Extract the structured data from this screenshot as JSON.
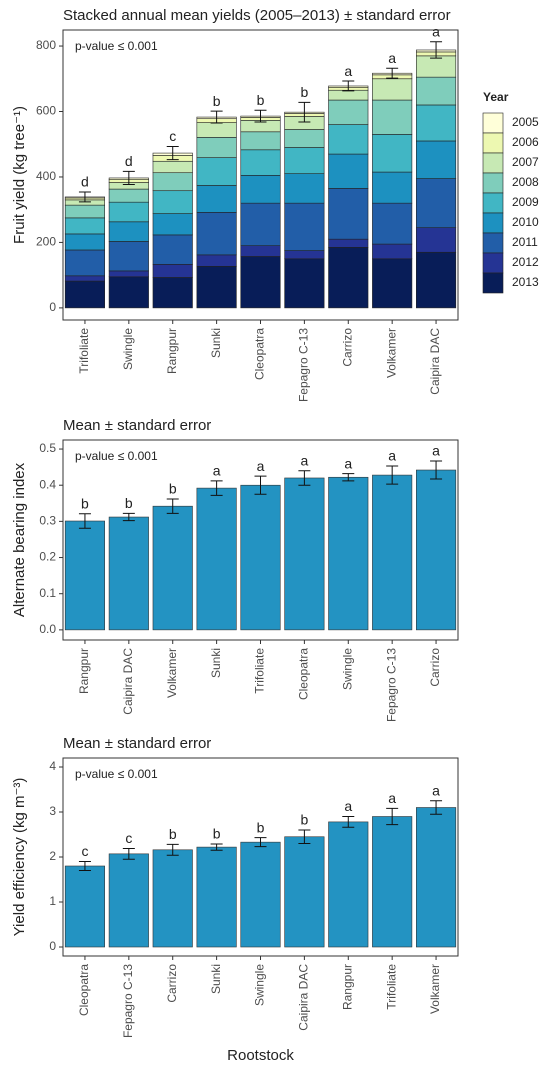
{
  "chart_data": [
    {
      "type": "stacked_bar",
      "title": "Stacked annual mean yields (2005–2013) ± standard error",
      "annotation": "p-value ≤ 0.001",
      "ylabel": "Fruit yield (kg tree⁻¹)",
      "legend_title": "Year",
      "categories": [
        "Trifoliate",
        "Swingle",
        "Rangpur",
        "Sunki",
        "Cleopatra",
        "Fepagro C-13",
        "Carrizo",
        "Volkamer",
        "Caipira DAC"
      ],
      "series": [
        {
          "name": "2005",
          "color": "#ffffd9",
          "values": [
            3,
            4,
            7,
            5,
            4,
            4,
            4,
            5,
            6
          ]
        },
        {
          "name": "2006",
          "color": "#edf8b1",
          "values": [
            6,
            10,
            18,
            12,
            9,
            9,
            9,
            12,
            12
          ]
        },
        {
          "name": "2007",
          "color": "#c7e9b4",
          "values": [
            16,
            20,
            35,
            45,
            35,
            40,
            30,
            65,
            65
          ]
        },
        {
          "name": "2008",
          "color": "#7fcdbb",
          "values": [
            39,
            40,
            55,
            62,
            55,
            55,
            75,
            105,
            85
          ]
        },
        {
          "name": "2009",
          "color": "#41b6c4",
          "values": [
            49,
            60,
            70,
            85,
            78,
            80,
            90,
            115,
            110
          ]
        },
        {
          "name": "2010",
          "color": "#1d91c0",
          "values": [
            49,
            60,
            65,
            82,
            85,
            90,
            105,
            95,
            115
          ]
        },
        {
          "name": "2011",
          "color": "#225ea8",
          "values": [
            79,
            90,
            90,
            130,
            130,
            145,
            155,
            125,
            150
          ]
        },
        {
          "name": "2012",
          "color": "#253494",
          "values": [
            16,
            18,
            40,
            35,
            33,
            25,
            25,
            45,
            75
          ]
        },
        {
          "name": "2013",
          "color": "#081d58",
          "values": [
            82,
            95,
            93,
            127,
            157,
            150,
            185,
            150,
            170
          ]
        }
      ],
      "errors": [
        15,
        20,
        20,
        18,
        18,
        30,
        15,
        15,
        25
      ],
      "letters": [
        "d",
        "d",
        "c",
        "b",
        "b",
        "b",
        "a",
        "a",
        "a"
      ],
      "ylim": [
        -37,
        849
      ],
      "yticks": [
        0,
        200,
        400,
        600,
        800
      ]
    },
    {
      "type": "bar",
      "title": "Mean ± standard error",
      "annotation": "p-value ≤ 0.001",
      "ylabel": "Alternate bearing index",
      "categories": [
        "Rangpur",
        "Caipira DAC",
        "Volkamer",
        "Sunki",
        "Trifoliate",
        "Cleopatra",
        "Swingle",
        "Fepagro C-13",
        "Carrizo"
      ],
      "values": [
        0.301,
        0.312,
        0.342,
        0.392,
        0.4,
        0.42,
        0.422,
        0.428,
        0.442
      ],
      "color": "#2393c2",
      "errors": [
        0.02,
        0.01,
        0.02,
        0.02,
        0.025,
        0.02,
        0.01,
        0.025,
        0.025
      ],
      "letters": [
        "b",
        "b",
        "b",
        "a",
        "a",
        "a",
        "a",
        "a",
        "a"
      ],
      "ylim": [
        -0.028,
        0.525
      ],
      "yticks": [
        {
          "value": 0,
          "label": "0.0"
        },
        0.1,
        0.2,
        0.3,
        0.4,
        0.5
      ]
    },
    {
      "type": "bar",
      "title": "Mean ± standard error",
      "annotation": "p-value ≤ 0.001",
      "ylabel": "Yield efficiency (kg m⁻³)",
      "xlabel": "Rootstock",
      "categories": [
        "Cleopatra",
        "Fepagro C-13",
        "Carrizo",
        "Sunki",
        "Swingle",
        "Caipira DAC",
        "Rangpur",
        "Trifoliate",
        "Volkamer"
      ],
      "values": [
        1.8,
        2.07,
        2.16,
        2.22,
        2.33,
        2.45,
        2.78,
        2.9,
        3.1
      ],
      "color": "#2393c2",
      "errors": [
        0.1,
        0.12,
        0.12,
        0.07,
        0.1,
        0.15,
        0.12,
        0.18,
        0.15
      ],
      "letters": [
        "c",
        "c",
        "b",
        "b",
        "b",
        "b",
        "a",
        "a",
        "a"
      ],
      "ylim": [
        -0.2,
        4.2
      ],
      "yticks": [
        0,
        1,
        2,
        3,
        4
      ]
    }
  ]
}
